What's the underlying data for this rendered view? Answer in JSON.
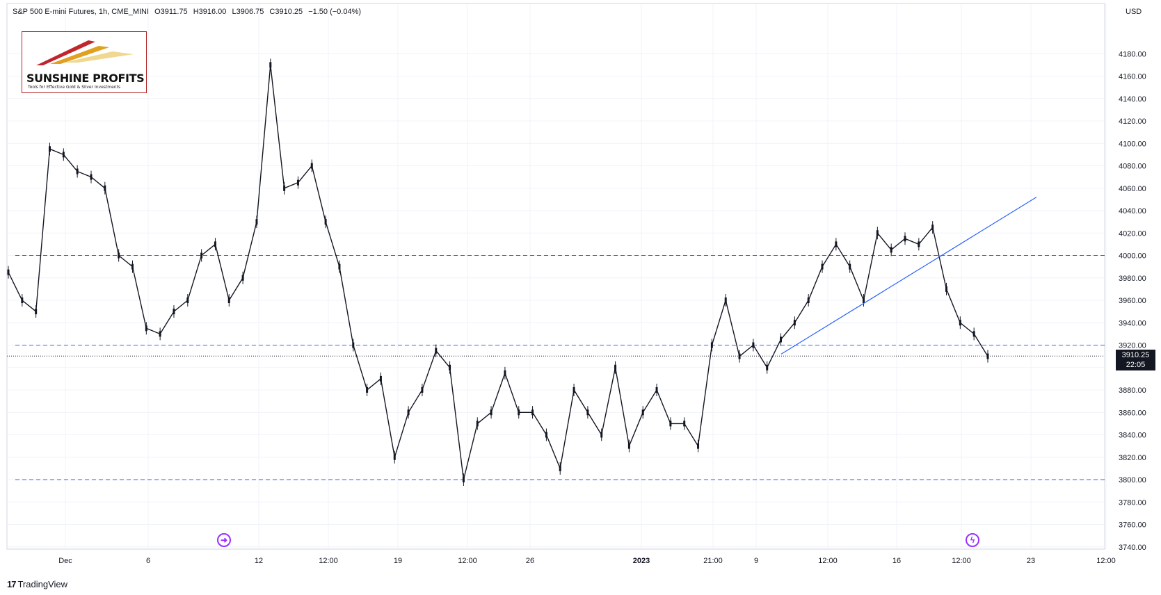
{
  "header": {
    "symbol": "S&P 500 E-mini Futures, 1h, CME_MINI",
    "open": "O3911.75",
    "high": "H3916.00",
    "low": "L3906.75",
    "close": "C3910.25",
    "change": "−1.50 (−0.04%)"
  },
  "logo": {
    "name": "SUNSHINE PROFITS",
    "tagline": "Tools for Effective Gold & Silver Investments"
  },
  "currency": "USD",
  "price_badge": {
    "price": "3910.25",
    "countdown": "22:05"
  },
  "footer": {
    "brand": "TradingView"
  },
  "events": [
    {
      "icon": "arrow-right-circle-icon",
      "glyph": "➜",
      "color": "#9b30ff"
    },
    {
      "icon": "lightning-circle-icon",
      "glyph": "ϟ",
      "color": "#9b30ff"
    }
  ],
  "chart_data": {
    "type": "candlestick",
    "title": "S&P 500 E-mini Futures, 1h, CME_MINI",
    "ylabel": "USD",
    "ylim": [
      3730,
      4200
    ],
    "grid": true,
    "y_ticks": [
      3740,
      3760,
      3780,
      3800,
      3820,
      3840,
      3860,
      3880,
      3900,
      3920,
      3940,
      3960,
      3980,
      4000,
      4020,
      4040,
      4060,
      4080,
      4100,
      4120,
      4140,
      4160,
      4180
    ],
    "x_tick_labels": [
      "Dec",
      "6",
      "12",
      "12:00",
      "19",
      "12:00",
      "26",
      "2023",
      "21:00",
      "9",
      "12:00",
      "16",
      "12:00",
      "23",
      "12:00"
    ],
    "last_price": 3910.25,
    "horizontal_levels": [
      4000,
      3920,
      3800
    ],
    "trendline": {
      "from": [
        "2023-01-10",
        3912
      ],
      "to": [
        "2023-01-22",
        4052
      ],
      "color": "#2962ff"
    },
    "series": [
      {
        "points": [
          [
            "Nov 28",
            3985
          ],
          [
            "Nov 29",
            3960
          ],
          [
            "Nov 30",
            3950
          ],
          [
            "Nov 30 13:00",
            4095
          ],
          [
            "Dec 1",
            4090
          ],
          [
            "Dec 2",
            4075
          ],
          [
            "Dec 3",
            4070
          ],
          [
            "Dec 4",
            4060
          ],
          [
            "Dec 5",
            4000
          ],
          [
            "Dec 6",
            3990
          ],
          [
            "Dec 7",
            3935
          ],
          [
            "Dec 8",
            3930
          ],
          [
            "Dec 9",
            3950
          ],
          [
            "Dec 10",
            3960
          ],
          [
            "Dec 11",
            4000
          ],
          [
            "Dec 12",
            4010
          ],
          [
            "Dec 13",
            3960
          ],
          [
            "Dec 13 12:00",
            3980
          ],
          [
            "Dec 14",
            4030
          ],
          [
            "Dec 14 12:00",
            4170
          ],
          [
            "Dec 15",
            4060
          ],
          [
            "Dec 15 12:00",
            4065
          ],
          [
            "Dec 16",
            4080
          ],
          [
            "Dec 17",
            4030
          ],
          [
            "Dec 18",
            3990
          ],
          [
            "Dec 19",
            3920
          ],
          [
            "Dec 20",
            3880
          ],
          [
            "Dec 21",
            3890
          ],
          [
            "Dec 22",
            3820
          ],
          [
            "Dec 23",
            3860
          ],
          [
            "Dec 24",
            3880
          ],
          [
            "Dec 25",
            3915
          ],
          [
            "Dec 26",
            3900
          ],
          [
            "Dec 27",
            3800
          ],
          [
            "Dec 28",
            3850
          ],
          [
            "Dec 29",
            3860
          ],
          [
            "Dec 30",
            3895
          ],
          [
            "Dec 31",
            3860
          ],
          [
            "Jan 1",
            3860
          ],
          [
            "Jan 2",
            3840
          ],
          [
            "Jan 3",
            3810
          ],
          [
            "Jan 4",
            3880
          ],
          [
            "Jan 5",
            3860
          ],
          [
            "Jan 6",
            3840
          ],
          [
            "Jan 7",
            3900
          ],
          [
            "Jan 8",
            3830
          ],
          [
            "Jan 9",
            3860
          ],
          [
            "Jan 10",
            3880
          ],
          [
            "Jan 11",
            3850
          ],
          [
            "Jan 12",
            3850
          ],
          [
            "Jan 13",
            3830
          ],
          [
            "Jan 14",
            3920
          ],
          [
            "Jan 15",
            3960
          ],
          [
            "Jan 16",
            3910
          ],
          [
            "Jan 17",
            3920
          ],
          [
            "Jan 18",
            3900
          ],
          [
            "Jan 19",
            3925
          ],
          [
            "Jan 20",
            3940
          ],
          [
            "Jan 21",
            3960
          ],
          [
            "Jan 22",
            3990
          ],
          [
            "Jan 23",
            4010
          ],
          [
            "Jan 24",
            3990
          ],
          [
            "Jan 25",
            3960
          ],
          [
            "Jan 26",
            4020
          ],
          [
            "Jan 27",
            4005
          ],
          [
            "Jan 28",
            4015
          ],
          [
            "Jan 29",
            4010
          ],
          [
            "Jan 30",
            4025
          ],
          [
            "Jan 31",
            3970
          ],
          [
            "Feb 1",
            3940
          ],
          [
            "Feb 2",
            3930
          ],
          [
            "Feb 3",
            3910
          ]
        ]
      }
    ]
  }
}
